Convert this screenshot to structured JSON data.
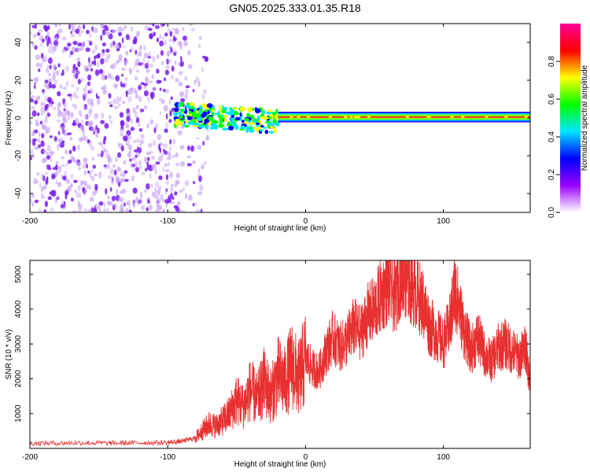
{
  "title": "GN05.2025.333.01.35.R18",
  "chart_data": [
    {
      "type": "heatmap",
      "xlabel": "Height of straight line (km)",
      "ylabel": "Frequency (Hz)",
      "xlim": [
        -200,
        163
      ],
      "ylim": [
        -50,
        50
      ],
      "xticks": [
        -200,
        -100,
        0,
        100
      ],
      "yticks": [
        -40,
        -20,
        0,
        20,
        40
      ],
      "xtick_labels": [
        "-200",
        "-100",
        "0",
        "100"
      ],
      "ytick_labels": [
        "-40",
        "-20",
        "0",
        "20",
        "40"
      ],
      "colorbar": {
        "label": "Normalized spectral amplitude",
        "range": [
          0,
          1
        ],
        "ticks": [
          0,
          0.2,
          0.4,
          0.6,
          0.8
        ],
        "tick_labels": [
          "0.0",
          "0.2",
          "0.4",
          "0.6",
          "0.8"
        ],
        "colormap": [
          "#ffffff",
          "#9b00ff",
          "#0000ff",
          "#00e5ff",
          "#00ff00",
          "#ffff00",
          "#ff0000",
          "#ff0099"
        ]
      },
      "regions": [
        {
          "name": "noise",
          "x": [
            -200,
            -90
          ],
          "freq_range": [
            -50,
            50
          ],
          "amplitude": 0.15
        },
        {
          "name": "sparse-noise",
          "x": [
            -90,
            -70
          ],
          "freq_range": [
            -50,
            50
          ],
          "amplitude": 0.08
        },
        {
          "name": "onset",
          "x": [
            -95,
            -20
          ],
          "freq_center": 2,
          "freq_spread": 6,
          "amplitude": 0.5
        },
        {
          "name": "steady-tone",
          "x": [
            -20,
            163
          ],
          "freq_center": 0.5,
          "freq_spread": 2,
          "amplitude": 0.95
        }
      ]
    },
    {
      "type": "line",
      "xlabel": "Height of straight line (km)",
      "ylabel": "SNR (10 * v/v)",
      "xlim": [
        -200,
        163
      ],
      "ylim": [
        0,
        5400
      ],
      "xticks": [
        -200,
        -100,
        0,
        100
      ],
      "yticks": [
        1000,
        2000,
        3000,
        4000,
        5000
      ],
      "xtick_labels": [
        "-200",
        "-100",
        "0",
        "100"
      ],
      "ytick_labels": [
        "1000",
        "2000",
        "3000",
        "4000",
        "5000"
      ],
      "color": "#e83030",
      "x": [
        -200,
        -180,
        -160,
        -140,
        -120,
        -100,
        -90,
        -80,
        -75,
        -70,
        -65,
        -60,
        -55,
        -50,
        -45,
        -40,
        -35,
        -30,
        -25,
        -20,
        -15,
        -10,
        -5,
        0,
        5,
        10,
        15,
        20,
        25,
        30,
        35,
        40,
        45,
        50,
        55,
        60,
        65,
        70,
        72,
        75,
        80,
        85,
        90,
        95,
        100,
        105,
        108,
        110,
        115,
        120,
        125,
        130,
        135,
        140,
        145,
        150,
        155,
        160,
        163
      ],
      "y": [
        150,
        150,
        160,
        150,
        160,
        170,
        200,
        300,
        500,
        700,
        650,
        800,
        1000,
        1400,
        1200,
        1700,
        1400,
        1900,
        1500,
        2100,
        1900,
        2400,
        2000,
        2600,
        2300,
        2200,
        2800,
        3200,
        2900,
        3100,
        3500,
        3300,
        3800,
        4000,
        4400,
        4700,
        4300,
        5200,
        5000,
        4800,
        4500,
        4200,
        3500,
        3300,
        3000,
        3600,
        4500,
        4300,
        3400,
        2800,
        3200,
        2700,
        2500,
        2900,
        3000,
        2800,
        2600,
        2900,
        1800
      ]
    }
  ]
}
